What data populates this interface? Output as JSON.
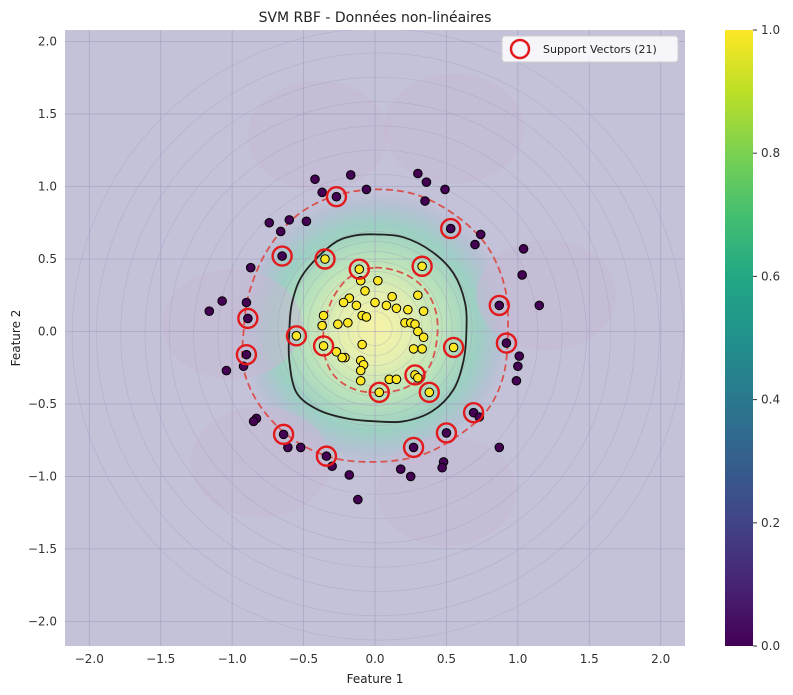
{
  "chart_data": {
    "type": "scatter",
    "title": "SVM RBF - Données non-linéaires",
    "xlabel": "Feature 1",
    "ylabel": "Feature 2",
    "xlim": [
      -2.17,
      2.17
    ],
    "ylim": [
      -2.17,
      2.08
    ],
    "x_ticks": [
      -2.0,
      -1.5,
      -1.0,
      -0.5,
      0.0,
      0.5,
      1.0,
      1.5,
      2.0
    ],
    "y_ticks": [
      -2.0,
      -1.5,
      -1.0,
      -0.5,
      0.0,
      0.5,
      1.0,
      1.5,
      2.0
    ],
    "x_tick_labels": [
      "−2.0",
      "−1.5",
      "−1.0",
      "−0.5",
      "0.0",
      "0.5",
      "1.0",
      "1.5",
      "2.0"
    ],
    "y_tick_labels": [
      "−2.0",
      "−1.5",
      "−1.0",
      "−0.5",
      "0.0",
      "0.5",
      "1.0",
      "1.5",
      "2.0"
    ],
    "grid": true,
    "legend": {
      "position": "top-right",
      "label": "Support Vectors (21)"
    },
    "colorbar": {
      "range": [
        0,
        1
      ],
      "ticks": [
        0.0,
        0.2,
        0.4,
        0.6,
        0.8,
        1.0
      ],
      "tick_labels": [
        "0.0",
        "0.2",
        "0.4",
        "0.6",
        "0.8",
        "1.0"
      ],
      "colormap": "viridis"
    },
    "colors": {
      "class0": "#440154",
      "class1": "#fde725",
      "support_ring": "#e31a1c",
      "decision_boundary": "#222222",
      "margin": "#d9534f",
      "background": "#c3c2d9"
    },
    "decision_boundary": [
      [
        0,
        0.67
      ],
      [
        0.2,
        0.65
      ],
      [
        0.4,
        0.55
      ],
      [
        0.55,
        0.4
      ],
      [
        0.63,
        0.2
      ],
      [
        0.64,
        0
      ],
      [
        0.62,
        -0.2
      ],
      [
        0.55,
        -0.4
      ],
      [
        0.4,
        -0.55
      ],
      [
        0.2,
        -0.62
      ],
      [
        0,
        -0.62
      ],
      [
        -0.2,
        -0.6
      ],
      [
        -0.4,
        -0.54
      ],
      [
        -0.55,
        -0.42
      ],
      [
        -0.6,
        -0.2
      ],
      [
        -0.6,
        0
      ],
      [
        -0.58,
        0.2
      ],
      [
        -0.5,
        0.4
      ],
      [
        -0.3,
        0.6
      ],
      [
        -0.15,
        0.66
      ]
    ],
    "margin_outer": [
      [
        0,
        0.98
      ],
      [
        0.3,
        0.94
      ],
      [
        0.58,
        0.79
      ],
      [
        0.79,
        0.58
      ],
      [
        0.91,
        0.3
      ],
      [
        0.93,
        0
      ],
      [
        0.9,
        -0.3
      ],
      [
        0.78,
        -0.55
      ],
      [
        0.55,
        -0.74
      ],
      [
        0.3,
        -0.86
      ],
      [
        0,
        -0.9
      ],
      [
        -0.3,
        -0.87
      ],
      [
        -0.58,
        -0.74
      ],
      [
        -0.8,
        -0.52
      ],
      [
        -0.92,
        -0.26
      ],
      [
        -0.92,
        0
      ],
      [
        -0.88,
        0.27
      ],
      [
        -0.76,
        0.55
      ],
      [
        -0.56,
        0.79
      ],
      [
        -0.3,
        0.93
      ]
    ],
    "margin_inner": [
      [
        0,
        0.44
      ],
      [
        0.2,
        0.4
      ],
      [
        0.35,
        0.29
      ],
      [
        0.43,
        0.12
      ],
      [
        0.43,
        -0.08
      ],
      [
        0.37,
        -0.26
      ],
      [
        0.23,
        -0.38
      ],
      [
        0.05,
        -0.42
      ],
      [
        -0.14,
        -0.4
      ],
      [
        -0.29,
        -0.3
      ],
      [
        -0.36,
        -0.13
      ],
      [
        -0.35,
        0.06
      ],
      [
        -0.29,
        0.24
      ],
      [
        -0.17,
        0.38
      ]
    ],
    "series": [
      {
        "class": 0,
        "points": [
          [
            -0.27,
            0.93
          ],
          [
            -0.37,
            0.96
          ],
          [
            -0.42,
            1.05
          ],
          [
            -0.17,
            1.08
          ],
          [
            -0.06,
            0.98
          ],
          [
            0.3,
            1.09
          ],
          [
            0.36,
            1.03
          ],
          [
            0.49,
            0.98
          ],
          [
            0.35,
            0.9
          ],
          [
            0.53,
            0.71
          ],
          [
            0.74,
            0.67
          ],
          [
            0.7,
            0.6
          ],
          [
            1.04,
            0.57
          ],
          [
            1.03,
            0.39
          ],
          [
            0.87,
            0.18
          ],
          [
            1.15,
            0.18
          ],
          [
            0.92,
            -0.08
          ],
          [
            1.01,
            -0.17
          ],
          [
            1.0,
            -0.24
          ],
          [
            0.99,
            -0.34
          ],
          [
            0.69,
            -0.56
          ],
          [
            0.73,
            -0.59
          ],
          [
            0.5,
            -0.7
          ],
          [
            0.87,
            -0.8
          ],
          [
            0.27,
            -0.8
          ],
          [
            0.48,
            -0.9
          ],
          [
            0.47,
            -0.94
          ],
          [
            0.18,
            -0.95
          ],
          [
            0.25,
            -1.0
          ],
          [
            -0.18,
            -0.99
          ],
          [
            -0.12,
            -1.16
          ],
          [
            -0.34,
            -0.86
          ],
          [
            -0.3,
            -0.93
          ],
          [
            -0.64,
            -0.71
          ],
          [
            -0.61,
            -0.8
          ],
          [
            -0.52,
            -0.8
          ],
          [
            -0.83,
            -0.6
          ],
          [
            -0.85,
            -0.62
          ],
          [
            -0.9,
            -0.16
          ],
          [
            -0.92,
            -0.24
          ],
          [
            -1.04,
            -0.27
          ],
          [
            -0.89,
            0.09
          ],
          [
            -0.9,
            0.2
          ],
          [
            -1.07,
            0.21
          ],
          [
            -1.16,
            0.14
          ],
          [
            -0.87,
            0.44
          ],
          [
            -0.65,
            0.52
          ],
          [
            -0.66,
            0.69
          ],
          [
            -0.74,
            0.75
          ],
          [
            -0.6,
            0.77
          ],
          [
            -0.48,
            0.76
          ]
        ]
      },
      {
        "class": 1,
        "points": [
          [
            -0.35,
            0.5
          ],
          [
            -0.11,
            0.43
          ],
          [
            0.33,
            0.45
          ],
          [
            -0.1,
            0.35
          ],
          [
            0.02,
            0.35
          ],
          [
            -0.07,
            0.28
          ],
          [
            -0.18,
            0.23
          ],
          [
            0.12,
            0.24
          ],
          [
            -0.22,
            0.2
          ],
          [
            0.3,
            0.25
          ],
          [
            0.0,
            0.2
          ],
          [
            -0.13,
            0.18
          ],
          [
            0.08,
            0.18
          ],
          [
            0.15,
            0.16
          ],
          [
            0.23,
            0.15
          ],
          [
            0.34,
            0.14
          ],
          [
            -0.09,
            0.11
          ],
          [
            -0.06,
            0.1
          ],
          [
            -0.36,
            0.11
          ],
          [
            -0.19,
            0.06
          ],
          [
            0.21,
            0.06
          ],
          [
            0.25,
            0.06
          ],
          [
            0.28,
            0.05
          ],
          [
            0.3,
            0.0
          ],
          [
            -0.26,
            0.05
          ],
          [
            -0.37,
            0.04
          ],
          [
            -0.55,
            -0.03
          ],
          [
            0.34,
            -0.04
          ],
          [
            0.55,
            -0.11
          ],
          [
            -0.36,
            -0.1
          ],
          [
            -0.09,
            -0.09
          ],
          [
            -0.27,
            -0.14
          ],
          [
            0.27,
            -0.12
          ],
          [
            0.33,
            -0.12
          ],
          [
            -0.21,
            -0.18
          ],
          [
            -0.23,
            -0.18
          ],
          [
            -0.1,
            -0.2
          ],
          [
            -0.08,
            -0.23
          ],
          [
            -0.1,
            -0.27
          ],
          [
            0.28,
            -0.3
          ],
          [
            0.3,
            -0.32
          ],
          [
            0.1,
            -0.33
          ],
          [
            0.15,
            -0.33
          ],
          [
            -0.1,
            -0.34
          ],
          [
            0.38,
            -0.42
          ],
          [
            0.03,
            -0.42
          ]
        ]
      }
    ],
    "support_vectors": [
      [
        -0.27,
        0.93
      ],
      [
        0.53,
        0.71
      ],
      [
        -0.65,
        0.52
      ],
      [
        -0.35,
        0.5
      ],
      [
        -0.11,
        0.43
      ],
      [
        0.33,
        0.45
      ],
      [
        0.87,
        0.18
      ],
      [
        -0.89,
        0.09
      ],
      [
        -0.55,
        -0.03
      ],
      [
        0.92,
        -0.08
      ],
      [
        -0.36,
        -0.1
      ],
      [
        0.55,
        -0.11
      ],
      [
        -0.9,
        -0.16
      ],
      [
        0.28,
        -0.3
      ],
      [
        0.38,
        -0.42
      ],
      [
        0.03,
        -0.42
      ],
      [
        0.69,
        -0.56
      ],
      [
        0.5,
        -0.7
      ],
      [
        -0.64,
        -0.71
      ],
      [
        0.27,
        -0.8
      ],
      [
        -0.34,
        -0.86
      ]
    ]
  }
}
